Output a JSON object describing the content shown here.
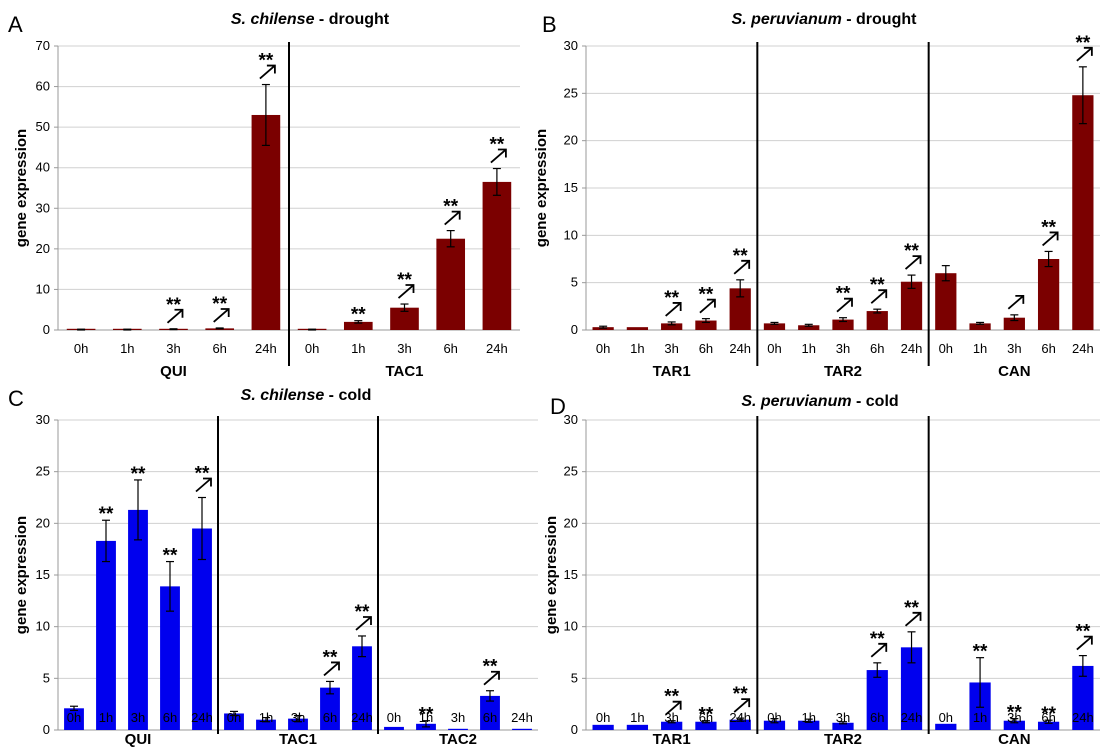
{
  "chart_data": [
    {
      "type": "bar",
      "panel_letter": "A",
      "title_italic": "S. chilense",
      "title_rest": " - drought",
      "ylabel": "gene expression",
      "ylim": [
        0,
        70
      ],
      "yticks": [
        0,
        10,
        20,
        30,
        40,
        50,
        60,
        70
      ],
      "grid": true,
      "color": "#7b0000",
      "groups": [
        {
          "name": "QUI",
          "categories": [
            "0h",
            "1h",
            "3h",
            "6h",
            "24h"
          ],
          "values": [
            0.1,
            0.1,
            0.2,
            0.4,
            53
          ],
          "errors": [
            0.1,
            0.1,
            0.1,
            0.1,
            7.5
          ],
          "significance": [
            "",
            "",
            "**",
            "**",
            "**"
          ],
          "up_arrows": [
            false,
            false,
            true,
            true,
            true
          ]
        },
        {
          "name": "TAC1",
          "categories": [
            "0h",
            "1h",
            "3h",
            "6h",
            "24h"
          ],
          "values": [
            0.1,
            2,
            5.5,
            22.5,
            36.5
          ],
          "errors": [
            0.1,
            0.3,
            0.9,
            2.0,
            3.3
          ],
          "significance": [
            "",
            "**",
            "**",
            "**",
            "**"
          ],
          "up_arrows": [
            false,
            false,
            true,
            true,
            true
          ]
        }
      ]
    },
    {
      "type": "bar",
      "panel_letter": "B",
      "title_italic": "S. peruvianum",
      "title_rest": " - drought",
      "ylabel": "gene expression",
      "ylim": [
        0,
        30
      ],
      "yticks": [
        0,
        5,
        10,
        15,
        20,
        25,
        30
      ],
      "grid": true,
      "color": "#7b0000",
      "groups": [
        {
          "name": "TAR1",
          "categories": [
            "0h",
            "1h",
            "3h",
            "6h",
            "24h"
          ],
          "values": [
            0.3,
            0.3,
            0.7,
            1.0,
            4.4
          ],
          "errors": [
            0.1,
            0.05,
            0.15,
            0.2,
            0.9
          ],
          "significance": [
            "",
            "",
            "**",
            "**",
            "**"
          ],
          "up_arrows": [
            false,
            false,
            true,
            true,
            true
          ]
        },
        {
          "name": "TAR2",
          "categories": [
            "0h",
            "1h",
            "3h",
            "6h",
            "24h"
          ],
          "values": [
            0.7,
            0.5,
            1.1,
            2.0,
            5.1
          ],
          "errors": [
            0.1,
            0.1,
            0.2,
            0.2,
            0.7
          ],
          "significance": [
            "",
            "",
            "**",
            "**",
            "**"
          ],
          "up_arrows": [
            false,
            false,
            true,
            true,
            true
          ]
        },
        {
          "name": "CAN",
          "categories": [
            "0h",
            "1h",
            "3h",
            "6h",
            "24h"
          ],
          "values": [
            6.0,
            0.7,
            1.3,
            7.5,
            24.8
          ],
          "errors": [
            0.8,
            0.1,
            0.3,
            0.8,
            3.0
          ],
          "significance": [
            "",
            "",
            "",
            "**",
            "**"
          ],
          "up_arrows": [
            false,
            false,
            true,
            true,
            true
          ]
        }
      ]
    },
    {
      "type": "bar",
      "panel_letter": "C",
      "title_italic": "S. chilense",
      "title_rest": " - cold",
      "ylabel": "gene expression",
      "ylim": [
        0,
        30
      ],
      "yticks": [
        0,
        5,
        10,
        15,
        20,
        25,
        30
      ],
      "grid": true,
      "color": "#0000ee",
      "groups": [
        {
          "name": "QUI",
          "categories": [
            "0h",
            "1h",
            "3h",
            "6h",
            "24h"
          ],
          "values": [
            2.1,
            18.3,
            21.3,
            13.9,
            19.5
          ],
          "errors": [
            0.2,
            2.0,
            2.9,
            2.4,
            3.0
          ],
          "significance": [
            "",
            "**",
            "**",
            "**",
            "**"
          ],
          "up_arrows": [
            false,
            false,
            false,
            false,
            true
          ]
        },
        {
          "name": "TAC1",
          "categories": [
            "0h",
            "1h",
            "3h",
            "6h",
            "24h"
          ],
          "values": [
            1.6,
            1.0,
            1.1,
            4.1,
            8.1
          ],
          "errors": [
            0.2,
            0.2,
            0.3,
            0.6,
            1.0
          ],
          "significance": [
            "",
            "",
            "",
            "**",
            "**"
          ],
          "up_arrows": [
            false,
            false,
            false,
            true,
            true
          ]
        },
        {
          "name": "TAC2",
          "categories": [
            "0h",
            "1h",
            "3h",
            "6h",
            "24h"
          ],
          "values": [
            0.3,
            0.6,
            0.05,
            3.3,
            0.1
          ],
          "errors": [
            0.05,
            0.3,
            0.02,
            0.5,
            0.05
          ],
          "significance": [
            "",
            "**",
            "",
            "**",
            ""
          ],
          "up_arrows": [
            false,
            false,
            false,
            true,
            false
          ]
        }
      ]
    },
    {
      "type": "bar",
      "panel_letter": "D",
      "title_italic": "S. peruvianum",
      "title_rest": " - cold",
      "ylabel": "gene expression",
      "ylim": [
        0,
        30
      ],
      "yticks": [
        0,
        5,
        10,
        15,
        20,
        25,
        30
      ],
      "grid": true,
      "color": "#0000ee",
      "groups": [
        {
          "name": "TAR1",
          "categories": [
            "0h",
            "1h",
            "3h",
            "6h",
            "24h"
          ],
          "values": [
            0.5,
            0.5,
            0.8,
            0.8,
            1.0
          ],
          "errors": [
            0.05,
            0.05,
            0.1,
            0.1,
            0.15
          ],
          "significance": [
            "",
            "",
            "**",
            "**",
            "**"
          ],
          "up_arrows": [
            false,
            false,
            true,
            false,
            true
          ]
        },
        {
          "name": "TAR2",
          "categories": [
            "0h",
            "1h",
            "3h",
            "6h",
            "24h"
          ],
          "values": [
            0.9,
            0.9,
            0.7,
            5.8,
            8.0
          ],
          "errors": [
            0.2,
            0.15,
            0.1,
            0.7,
            1.5
          ],
          "significance": [
            "",
            "",
            "",
            "**",
            "**"
          ],
          "up_arrows": [
            false,
            false,
            false,
            true,
            true
          ]
        },
        {
          "name": "CAN",
          "categories": [
            "0h",
            "1h",
            "3h",
            "6h",
            "24h"
          ],
          "values": [
            0.6,
            4.6,
            0.9,
            0.8,
            6.2
          ],
          "errors": [
            0.05,
            2.4,
            0.2,
            0.15,
            1.0
          ],
          "significance": [
            "",
            "**",
            "**",
            "**",
            "**"
          ],
          "up_arrows": [
            false,
            false,
            false,
            false,
            true
          ]
        }
      ]
    }
  ]
}
